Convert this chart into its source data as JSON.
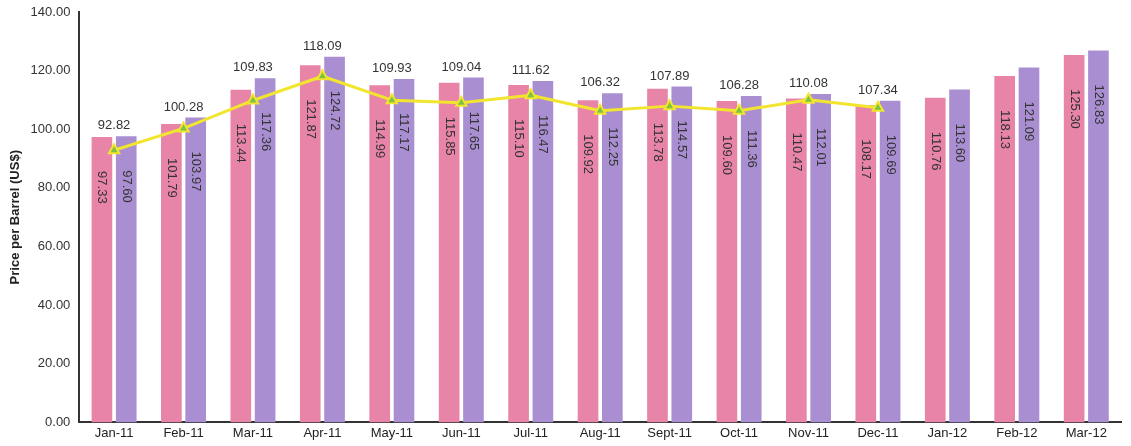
{
  "chart_data": {
    "type": "bar",
    "ylabel": "Price per Barrel (US$)",
    "categories": [
      "Jan-11",
      "Feb-11",
      "Mar-11",
      "Apr-11",
      "May-11",
      "Jun-11",
      "Jul-11",
      "Aug-11",
      "Sept-11",
      "Oct-11",
      "Nov-11",
      "Dec-11",
      "Jan-12",
      "Feb-12",
      "Mar-12"
    ],
    "series": [
      {
        "color": "#e784a8",
        "values": [
          97.33,
          101.79,
          113.44,
          121.87,
          114.99,
          115.85,
          115.1,
          109.92,
          113.78,
          109.6,
          110.47,
          108.17,
          110.76,
          118.13,
          125.3
        ],
        "value_labels": [
          "97.33",
          "101.79",
          "113.44",
          "121.87",
          "114.99",
          "115.85",
          "115.10",
          "109.92",
          "113.78",
          "109.60",
          "110.47",
          "108.17",
          "110.76",
          "118.13",
          "125.30"
        ]
      },
      {
        "color": "#a98fd2",
        "values": [
          97.6,
          103.97,
          117.36,
          124.72,
          117.17,
          117.65,
          116.47,
          112.25,
          114.57,
          111.36,
          112.01,
          109.69,
          113.6,
          121.09,
          126.83
        ],
        "value_labels": [
          "97.60",
          "103.97",
          "117.36",
          "124.72",
          "117.17",
          "117.65",
          "116.47",
          "112.25",
          "114.57",
          "111.36",
          "112.01",
          "109.69",
          "113.60",
          "121.09",
          "126.83"
        ]
      },
      {
        "type": "line",
        "color": "#f2e52e",
        "values": [
          92.82,
          100.28,
          109.83,
          118.09,
          109.93,
          109.04,
          111.62,
          106.32,
          107.89,
          106.28,
          110.08,
          107.34,
          null,
          null,
          null
        ],
        "value_labels": [
          "92.82",
          "100.28",
          "109.83",
          "118.09",
          "109.93",
          "109.04",
          "111.62",
          "106.32",
          "107.89",
          "106.28",
          "110.08",
          "107.34",
          null,
          null,
          null
        ]
      }
    ],
    "ylim": [
      0,
      140
    ],
    "yticks": [
      {
        "value": 0,
        "label": "0.00"
      },
      {
        "value": 20,
        "label": "20.00"
      },
      {
        "value": 40,
        "label": "40.00"
      },
      {
        "value": 60,
        "label": "60.00"
      },
      {
        "value": 80,
        "label": "80.00"
      },
      {
        "value": 100,
        "label": "100.00"
      },
      {
        "value": 120,
        "label": "120.00"
      },
      {
        "value": 140,
        "label": "140.00"
      }
    ],
    "grid": false,
    "legend": false,
    "marker": "triangle",
    "line_style": "solid"
  }
}
